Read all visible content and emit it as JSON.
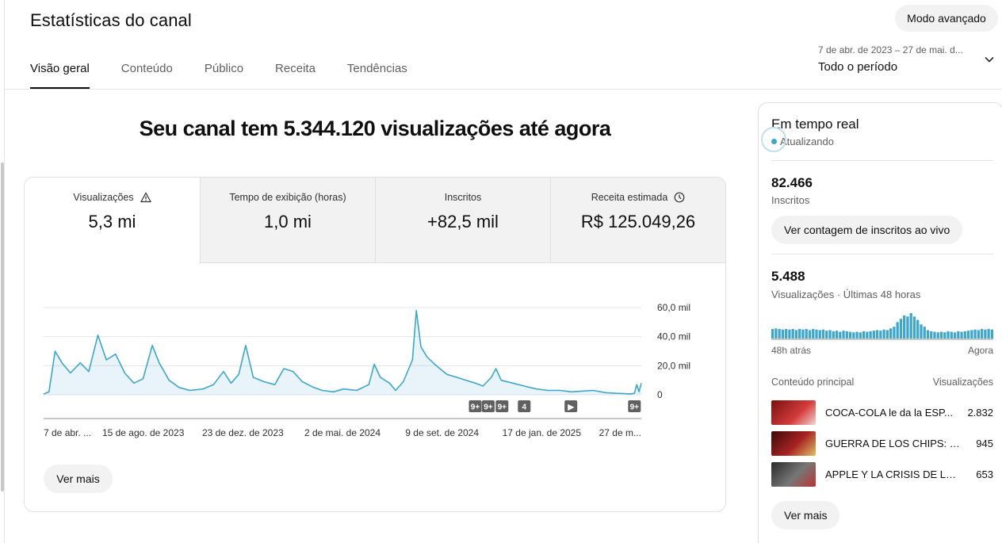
{
  "header": {
    "title": "Estatísticas do canal",
    "advanced_mode": "Modo avançado"
  },
  "tabs": [
    {
      "label": "Visão geral",
      "active": true
    },
    {
      "label": "Conteúdo",
      "active": false
    },
    {
      "label": "Público",
      "active": false
    },
    {
      "label": "Receita",
      "active": false
    },
    {
      "label": "Tendências",
      "active": false
    }
  ],
  "period": {
    "range": "7 de abr. de 2023 – 27 de mai. d...",
    "label": "Todo o período"
  },
  "headline": "Seu canal tem 5.344.120 visualizações até agora",
  "metrics": [
    {
      "label": "Visualizações",
      "value": "5,3 mi",
      "icon": "warning-icon",
      "active": true
    },
    {
      "label": "Tempo de exibição (horas)",
      "value": "1,0 mi",
      "icon": "",
      "active": false
    },
    {
      "label": "Inscritos",
      "value": "+82,5 mil",
      "icon": "",
      "active": false
    },
    {
      "label": "Receita estimada",
      "value": "R$ 125.049,26",
      "icon": "clock-icon",
      "active": false
    }
  ],
  "chart_data": {
    "type": "area",
    "title": "",
    "xlabel": "",
    "ylabel": "",
    "ylim": [
      0,
      60000
    ],
    "y_ticks": [
      "0",
      "20,0 mil",
      "40,0 mil",
      "60,0 mil"
    ],
    "x_ticks": [
      "7 de abr. ...",
      "15 de ago. de 2023",
      "23 de dez. de 2023",
      "2 de mai. de 2024",
      "9 de set. de 2024",
      "17 de jan. de 2025",
      "27 de m..."
    ],
    "x_start": "2023-04-07",
    "x_end": "2025-05-27",
    "color": "#3ea6ca",
    "points": [
      [
        "2023-04-07",
        500
      ],
      [
        "2023-04-14",
        2000
      ],
      [
        "2023-04-22",
        30000
      ],
      [
        "2023-05-01",
        22000
      ],
      [
        "2023-05-12",
        15000
      ],
      [
        "2023-05-25",
        22000
      ],
      [
        "2023-06-05",
        16000
      ],
      [
        "2023-06-17",
        41000
      ],
      [
        "2023-06-28",
        24000
      ],
      [
        "2023-07-10",
        28000
      ],
      [
        "2023-07-22",
        15000
      ],
      [
        "2023-08-03",
        8000
      ],
      [
        "2023-08-15",
        11000
      ],
      [
        "2023-08-27",
        34000
      ],
      [
        "2023-09-05",
        22000
      ],
      [
        "2023-09-18",
        10000
      ],
      [
        "2023-10-01",
        5000
      ],
      [
        "2023-10-15",
        3000
      ],
      [
        "2023-11-01",
        4000
      ],
      [
        "2023-11-15",
        7000
      ],
      [
        "2023-11-28",
        16000
      ],
      [
        "2023-12-08",
        8000
      ],
      [
        "2023-12-18",
        14000
      ],
      [
        "2023-12-27",
        34000
      ],
      [
        "2024-01-06",
        12000
      ],
      [
        "2024-01-20",
        9000
      ],
      [
        "2024-02-03",
        7000
      ],
      [
        "2024-02-15",
        18000
      ],
      [
        "2024-02-27",
        16000
      ],
      [
        "2024-03-10",
        9000
      ],
      [
        "2024-03-25",
        5000
      ],
      [
        "2024-04-05",
        3000
      ],
      [
        "2024-04-20",
        2000
      ],
      [
        "2024-05-03",
        4000
      ],
      [
        "2024-05-20",
        3000
      ],
      [
        "2024-06-05",
        7000
      ],
      [
        "2024-06-12",
        21000
      ],
      [
        "2024-06-20",
        12000
      ],
      [
        "2024-07-02",
        8000
      ],
      [
        "2024-07-10",
        3000
      ],
      [
        "2024-07-20",
        9000
      ],
      [
        "2024-08-01",
        24000
      ],
      [
        "2024-08-06",
        58000
      ],
      [
        "2024-08-12",
        33000
      ],
      [
        "2024-08-20",
        26000
      ],
      [
        "2024-09-01",
        20000
      ],
      [
        "2024-09-15",
        14000
      ],
      [
        "2024-09-28",
        12000
      ],
      [
        "2024-10-10",
        10000
      ],
      [
        "2024-10-22",
        8000
      ],
      [
        "2024-11-01",
        6000
      ],
      [
        "2024-11-12",
        12000
      ],
      [
        "2024-11-18",
        18000
      ],
      [
        "2024-11-25",
        10000
      ],
      [
        "2024-12-10",
        8000
      ],
      [
        "2024-12-25",
        6000
      ],
      [
        "2025-01-10",
        4000
      ],
      [
        "2025-01-25",
        3000
      ],
      [
        "2025-02-10",
        3000
      ],
      [
        "2025-02-25",
        2000
      ],
      [
        "2025-03-10",
        2500
      ],
      [
        "2025-03-25",
        3000
      ],
      [
        "2025-04-10",
        1500
      ],
      [
        "2025-04-25",
        1000
      ],
      [
        "2025-05-05",
        800
      ],
      [
        "2025-05-12",
        600
      ],
      [
        "2025-05-18",
        1000
      ],
      [
        "2025-05-21",
        7000
      ],
      [
        "2025-05-24",
        2000
      ],
      [
        "2025-05-27",
        8000
      ]
    ],
    "markers": [
      {
        "date": "2024-10-22",
        "label": "9+"
      },
      {
        "date": "2024-11-08",
        "label": "9+"
      },
      {
        "date": "2024-11-26",
        "label": "9+"
      },
      {
        "date": "2024-12-25",
        "label": "4"
      },
      {
        "date": "2025-02-24",
        "label": "▶"
      },
      {
        "date": "2025-05-18",
        "label": "9+"
      }
    ]
  },
  "see_more": "Ver mais",
  "realtime": {
    "title": "Em tempo real",
    "status": "Atualizando",
    "subscribers_value": "82.466",
    "subscribers_label": "Inscritos",
    "live_count_button": "Ver contagem de inscritos ao vivo",
    "views_value": "5.488",
    "views_label": "Visualizações · Últimas 48 horas",
    "spark_start": "48h atrás",
    "spark_end": "Agora",
    "spark_color": "#3ea6ca",
    "spark_values": [
      14,
      15,
      14,
      13,
      14,
      13,
      14,
      12,
      14,
      13,
      14,
      12,
      14,
      13,
      12,
      13,
      11,
      12,
      10,
      11,
      9,
      11,
      10,
      9,
      8,
      9,
      8,
      10,
      9,
      10,
      11,
      12,
      11,
      13,
      12,
      15,
      18,
      26,
      32,
      38,
      36,
      42,
      36,
      30,
      22,
      18,
      12,
      10,
      9,
      8,
      9,
      8,
      10,
      9,
      8,
      10,
      9,
      10,
      11,
      12,
      13,
      12,
      14,
      13,
      14,
      13
    ],
    "top_content_label": "Conteúdo principal",
    "top_views_label": "Visualizações",
    "top_content": [
      {
        "title": "COCA-COLA le da la ESP...",
        "views": "2.832",
        "thumb_color": "#b32020"
      },
      {
        "title": "GUERRA DE LOS CHIPS: Ch...",
        "views": "945",
        "thumb_color": "#8a1f1f"
      },
      {
        "title": "APPLE Y LA CRISIS DE LOS...",
        "views": "653",
        "thumb_color": "#5a5a5a"
      }
    ],
    "see_more": "Ver mais"
  }
}
